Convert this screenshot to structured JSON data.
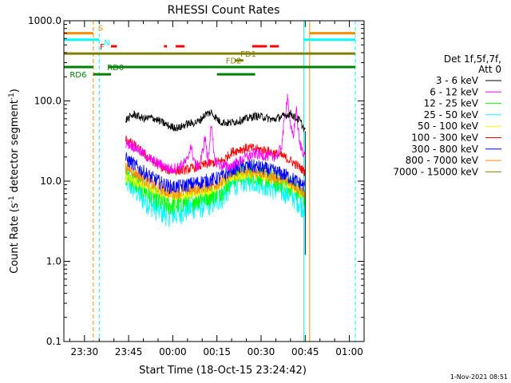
{
  "chart_data": {
    "type": "line",
    "title": "RHESSI Count Rates",
    "xlabel": "Start Time (18-Oct-15 23:24:42)",
    "ylabel_main": "Count Rate (s",
    "ylabel_sup1": "-1",
    "ylabel_mid": " detector segment",
    "ylabel_sup2": "-1",
    "ylabel_end": ")",
    "y_scale": "log",
    "ylim": [
      0.1,
      1000
    ],
    "xlim_minutes": [
      -37,
      65
    ],
    "x_ticks": [
      {
        "label": "23:30",
        "t": -30
      },
      {
        "label": "23:45",
        "t": -15
      },
      {
        "label": "00:00",
        "t": 0
      },
      {
        "label": "00:15",
        "t": 15
      },
      {
        "label": "00:30",
        "t": 30
      },
      {
        "label": "00:45",
        "t": 45
      },
      {
        "label": "01:00",
        "t": 60
      }
    ],
    "y_ticks": [
      {
        "label": "1000.0",
        "v": 1000
      },
      {
        "label": "100.0",
        "v": 100
      },
      {
        "label": "10.0",
        "v": 10
      },
      {
        "label": "1.0",
        "v": 1
      },
      {
        "label": "0.1",
        "v": 0.1
      }
    ],
    "legend": {
      "header1": "Det 1f,5f,7f,",
      "header2": "Att 0",
      "placement": "right"
    },
    "series": [
      {
        "name": "3 - 6 keV",
        "color": "#000000",
        "t": [
          -16,
          -13,
          -10,
          -7,
          -4,
          -1,
          2,
          5,
          7,
          9,
          11,
          13,
          16,
          19,
          22,
          25,
          28,
          31,
          34,
          36,
          38,
          40,
          42,
          43,
          44,
          45
        ],
        "v": [
          58,
          68,
          60,
          62,
          55,
          48,
          46,
          52,
          53,
          56,
          68,
          72,
          55,
          53,
          56,
          60,
          65,
          63,
          58,
          62,
          65,
          70,
          60,
          58,
          50,
          42
        ]
      },
      {
        "name": "6 - 12 keV",
        "color": "#ff00ff",
        "t": [
          -16,
          -13,
          -10,
          -7,
          -4,
          -1,
          2,
          5,
          6,
          7,
          8,
          9,
          10,
          11,
          12,
          13,
          14,
          15,
          16,
          19,
          22,
          25,
          28,
          31,
          34,
          36,
          37,
          38,
          39,
          40,
          41,
          42,
          43,
          44,
          45
        ],
        "v": [
          30,
          27,
          22,
          18,
          16,
          14,
          15,
          18,
          28,
          20,
          15,
          16,
          22,
          36,
          16,
          55,
          20,
          17,
          16,
          15,
          17,
          20,
          22,
          21,
          20,
          22,
          28,
          60,
          120,
          45,
          38,
          80,
          30,
          25,
          20
        ]
      },
      {
        "name": "12 - 25 keV",
        "color": "#00ff00",
        "t": [
          -16,
          -13,
          -10,
          -7,
          -4,
          -1,
          2,
          5,
          8,
          11,
          14,
          17,
          20,
          23,
          26,
          29,
          32,
          35,
          38,
          41,
          44,
          45
        ],
        "v": [
          12,
          10,
          8,
          6.5,
          5.5,
          5.0,
          5.2,
          5.8,
          6.0,
          6.5,
          7.0,
          8.0,
          11,
          12,
          12.5,
          12,
          11,
          10,
          9.5,
          8.5,
          6.5,
          6.0
        ]
      },
      {
        "name": "25 - 50 keV",
        "color": "#00ffff",
        "t": [
          -16,
          -13,
          -10,
          -7,
          -4,
          -1,
          2,
          5,
          8,
          11,
          14,
          17,
          20,
          23,
          26,
          29,
          32,
          35,
          38,
          41,
          44,
          45
        ],
        "v": [
          10,
          8,
          6,
          5,
          4.2,
          3.8,
          4.0,
          4.5,
          4.8,
          5.0,
          5.5,
          6.5,
          9,
          10,
          10.5,
          10,
          9,
          8,
          7.5,
          6.5,
          5,
          4.5
        ]
      },
      {
        "name": "50 - 100 keV",
        "color": "#ffff00",
        "t": [
          -16,
          -10,
          -4,
          2,
          8,
          14,
          20,
          26,
          32,
          38,
          44
        ],
        "v": [
          11,
          9,
          7,
          6.5,
          7,
          8,
          11,
          12,
          11,
          9.5,
          7
        ]
      },
      {
        "name": "100 - 300 keV",
        "color": "#ff0000",
        "t": [
          -16,
          -13,
          -10,
          -7,
          -4,
          -1,
          2,
          5,
          8,
          11,
          14,
          17,
          20,
          23,
          26,
          29,
          32,
          35,
          38,
          41,
          44,
          45
        ],
        "v": [
          33,
          28,
          22,
          18,
          15,
          13.5,
          13.5,
          14,
          15,
          16,
          17,
          18,
          23,
          25,
          26,
          25,
          24,
          22,
          20,
          17,
          14,
          13
        ]
      },
      {
        "name": "300 - 800 keV",
        "color": "#0000ff",
        "t": [
          -16,
          -13,
          -10,
          -7,
          -4,
          -1,
          2,
          5,
          8,
          11,
          14,
          17,
          20,
          23,
          26,
          29,
          32,
          35,
          38,
          41,
          44,
          45
        ],
        "v": [
          19,
          16,
          13,
          11,
          9.5,
          8.5,
          8.5,
          9,
          9.5,
          10,
          10.5,
          11.5,
          14,
          15,
          15.5,
          15,
          14,
          13,
          12,
          10.5,
          9,
          8.5
        ]
      },
      {
        "name": "800 - 7000 keV",
        "color": "#ff8c00",
        "t": [
          -16,
          -13,
          -10,
          -7,
          -4,
          -1,
          2,
          5,
          8,
          11,
          14,
          17,
          20,
          23,
          26,
          29,
          32,
          35,
          38,
          41,
          44,
          45
        ],
        "v": [
          15,
          13,
          10.5,
          9,
          8,
          7.2,
          7.2,
          7.6,
          8,
          8.5,
          9,
          9.8,
          12,
          13,
          13.5,
          13,
          12,
          11,
          10.2,
          9,
          7.5,
          7
        ]
      },
      {
        "name": "7000 - 15000 keV",
        "color": "#808000",
        "t": [],
        "v": []
      }
    ],
    "vlines": [
      {
        "t": -37,
        "color": "#00ffff",
        "style": "solid"
      },
      {
        "t": -27,
        "color": "#ff8c00",
        "style": "dashed"
      },
      {
        "t": -25,
        "color": "#00ffff",
        "style": "dashed"
      },
      {
        "t": 44.5,
        "color": "#00ffff",
        "style": "solid"
      },
      {
        "t": 46.5,
        "color": "#ff8c00",
        "style": "solid"
      },
      {
        "t": 62,
        "color": "#00ffff",
        "style": "dashed"
      }
    ],
    "flag_bars": [
      {
        "label": "S",
        "color": "#ff8c00",
        "level": 700,
        "segments": [
          [
            -37,
            -27
          ],
          [
            46.5,
            62
          ]
        ]
      },
      {
        "label": "N",
        "color": "#00ffff",
        "level": 580,
        "segments": [
          [
            -37,
            -25
          ],
          [
            44.5,
            62
          ]
        ]
      },
      {
        "label": "F",
        "color": "#ff0000",
        "level": 480,
        "segments": [
          [
            -21,
            -19
          ],
          [
            -3,
            -2
          ],
          [
            1,
            4
          ],
          [
            27,
            32
          ],
          [
            33,
            36
          ]
        ]
      },
      {
        "label": "FD1",
        "color": "#808000",
        "level": 390,
        "segments": [
          [
            -37,
            62
          ]
        ]
      },
      {
        "label": "FD2",
        "color": "#808000",
        "level": 320,
        "segments": [
          [
            21,
            24
          ]
        ]
      },
      {
        "label": "RD0",
        "color": "#008000",
        "level": 265,
        "segments": [
          [
            -37,
            -27
          ],
          [
            -22,
            62
          ]
        ]
      },
      {
        "label": "RD6",
        "color": "#008000",
        "level": 215,
        "segments": [
          [
            -27,
            -21
          ],
          [
            15,
            28
          ]
        ]
      }
    ],
    "timestamp": "1-Nov-2021 08:51"
  }
}
